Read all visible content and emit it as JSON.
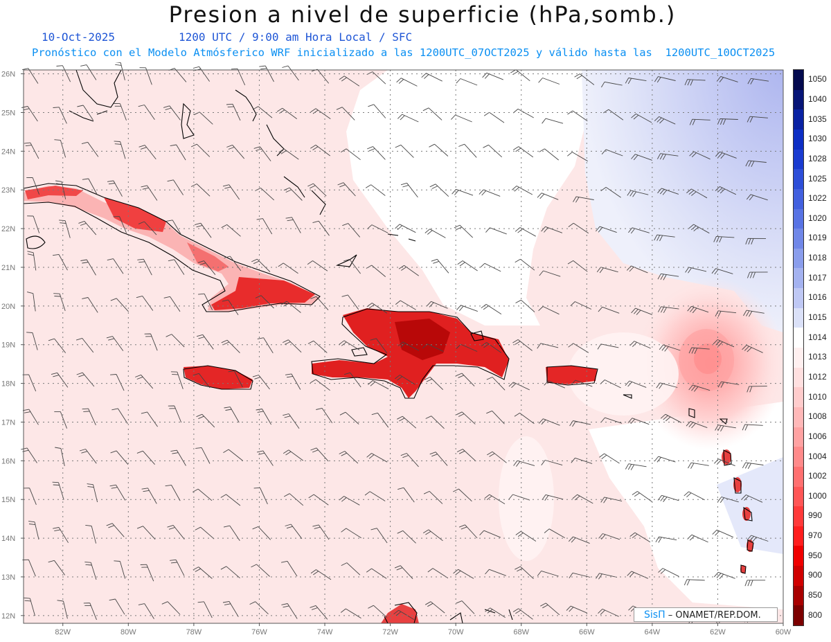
{
  "title": "Presion a nivel de superficie (hPa,somb.)",
  "subtitle_date": "10-Oct-2025",
  "subtitle_time": "1200 UTC / 9:00 am Hora Local / SFC",
  "subtitle_description": "Pronóstico con el Modelo Atmósferico WRF inicializado a las 1200UTC_07OCT2025 y válido hasta las  1200UTC_10OCT2025",
  "credit": {
    "logo": "SisΠ",
    "text": "– ONAMET/REP.DOM."
  },
  "map": {
    "lon_range": [
      -83.2,
      -60
    ],
    "lat_range": [
      11.8,
      26.1
    ],
    "latitude_labels": [
      "26N",
      "25N",
      "24N",
      "23N",
      "22N",
      "21N",
      "20N",
      "19N",
      "18N",
      "17N",
      "16N",
      "15N",
      "14N",
      "13N",
      "12N"
    ],
    "longitude_labels": [
      "82W",
      "80W",
      "78W",
      "76W",
      "74W",
      "72W",
      "70W",
      "68W",
      "66W",
      "64W",
      "62W",
      "60W"
    ],
    "grid": "dotted",
    "feature": "low pressure center near 18.5N 62.2W"
  },
  "legend": {
    "units": "hPa",
    "levels": [
      "1050",
      "1040",
      "1035",
      "1030",
      "1028",
      "1025",
      "1022",
      "1020",
      "1019",
      "1018",
      "1017",
      "1016",
      "1015",
      "1014",
      "1013",
      "1012",
      "1010",
      "1008",
      "1006",
      "1004",
      "1002",
      "1000",
      "990",
      "970",
      "950",
      "900",
      "850",
      "800"
    ],
    "colors": [
      "#040a4e",
      "#071577",
      "#0a22a3",
      "#0d2ec4",
      "#1a3bd0",
      "#2d4ed8",
      "#4260df",
      "#5873e4",
      "#7087e8",
      "#8a9dec",
      "#a4b2f0",
      "#bfc8f4",
      "#dbe1f8",
      "#ffffff",
      "#fff0f0",
      "#ffe0e0",
      "#ffcccc",
      "#ffb8b8",
      "#ffa2a2",
      "#ff8a8a",
      "#ff7070",
      "#ff5656",
      "#ff3a3a",
      "#ff1e1e",
      "#f00000",
      "#d00000",
      "#a80000",
      "#7c0000"
    ]
  }
}
